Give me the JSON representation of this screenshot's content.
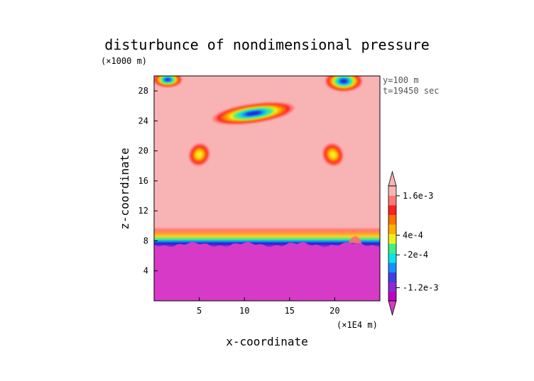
{
  "chart_data": {
    "type": "heatmap",
    "title": "disturbunce of nondimensional pressure",
    "xlabel": "x-coordinate",
    "ylabel": "z-coordinate",
    "x_unit": "(×1E4 m)",
    "y_unit": "(×1000 m)",
    "annotations": [
      "y=100 m",
      "t=19450 sec"
    ],
    "x_ticks": [
      5,
      10,
      15,
      20
    ],
    "y_ticks": [
      4,
      8,
      12,
      16,
      20,
      24,
      28
    ],
    "xlim": [
      0,
      25
    ],
    "ylim": [
      0,
      30
    ],
    "colorbar": {
      "tick_labels": [
        "1.6e-3",
        "4e-4",
        "-2e-4",
        "-1.2e-3"
      ],
      "tick_values": [
        0.0016,
        0.0004,
        -0.0002,
        -0.0012
      ],
      "range": [
        -0.0016,
        0.0019
      ]
    },
    "background_value": 0.0012,
    "lower_layer": {
      "value": -0.0016,
      "top_z": 7.5
    },
    "features": [
      {
        "name": "upper-left blob",
        "x": 1.5,
        "z": 29.5,
        "value": -0.0006
      },
      {
        "name": "upper-right blob",
        "x": 21,
        "z": 29.3,
        "value": -0.0006
      },
      {
        "name": "central arc",
        "x": 11,
        "z": 25,
        "value": -0.0006
      },
      {
        "name": "left blob",
        "x": 5,
        "z": 19.5,
        "value": 0.0006
      },
      {
        "name": "right blob",
        "x": 19.8,
        "z": 19.5,
        "value": 0.0006
      }
    ]
  },
  "colors": {
    "background": "#f8b4b4",
    "lower_layer": "#d63ac6",
    "scale": [
      "#c000c0",
      "#8c2ad2",
      "#4040e0",
      "#1590ff",
      "#10e0e8",
      "#40f080",
      "#f0f020",
      "#ffb000",
      "#ff7000",
      "#ff2020",
      "#ff7878",
      "#f8b4b4"
    ]
  }
}
